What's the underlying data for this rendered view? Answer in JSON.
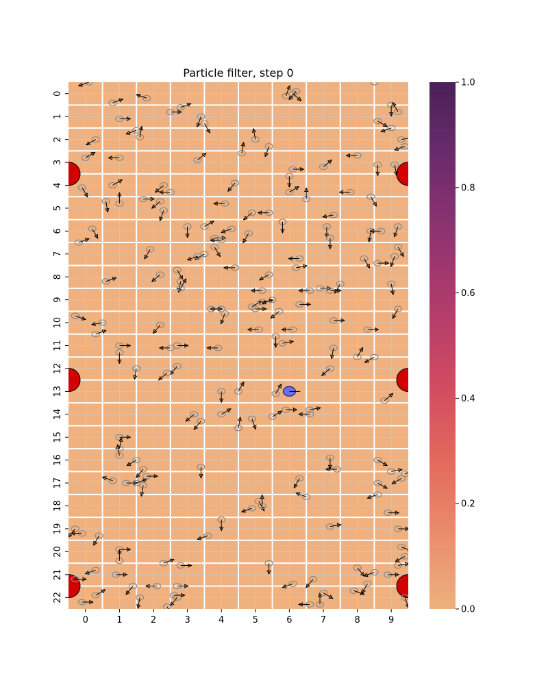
{
  "chart_data": {
    "type": "heatmap",
    "title": "Particle filter, step 0",
    "xlabel": "",
    "ylabel": "",
    "x_ticks": [
      "0",
      "1",
      "2",
      "3",
      "4",
      "5",
      "6",
      "7",
      "8",
      "9"
    ],
    "y_ticks": [
      "0",
      "1",
      "2",
      "3",
      "4",
      "5",
      "6",
      "7",
      "8",
      "9",
      "10",
      "11",
      "12",
      "13",
      "14",
      "15",
      "16",
      "17",
      "18",
      "19",
      "20",
      "21",
      "22"
    ],
    "grid_size": {
      "cols": 10,
      "rows": 23
    },
    "cell_value": 0.0,
    "colorbar": {
      "ticks": [
        "0.0",
        "0.2",
        "0.4",
        "0.6",
        "0.8",
        "1.0"
      ],
      "range": [
        0.0,
        1.0
      ],
      "colormap": "flare",
      "colors": [
        "#eeb17f",
        "#e98d6b",
        "#e3685c",
        "#d14a61",
        "#b13c6b",
        "#8f3371",
        "#6c2b6d",
        "#4a2158"
      ]
    },
    "walls": {
      "vertical_after_cols": [
        0,
        1,
        2,
        3,
        4,
        5,
        6,
        7,
        8
      ],
      "horizontal_after_rows": [
        0,
        1,
        2,
        3,
        4,
        5,
        6,
        7,
        8,
        9,
        10,
        11,
        12,
        13,
        14,
        15,
        16,
        17,
        18,
        19,
        20,
        21
      ]
    },
    "landmarks": [
      {
        "x": -0.5,
        "y": 3.5
      },
      {
        "x": 9.5,
        "y": 3.5
      },
      {
        "x": -0.5,
        "y": 12.5
      },
      {
        "x": 9.5,
        "y": 12.5
      },
      {
        "x": -0.5,
        "y": 21.5
      },
      {
        "x": 9.5,
        "y": 21.5
      }
    ],
    "robot": {
      "x": 6.0,
      "y": 13.0,
      "heading": 0
    },
    "particles": [
      [
        0.1,
        -0.5,
        200
      ],
      [
        0.8,
        0.4,
        20
      ],
      [
        1.8,
        0.2,
        160
      ],
      [
        2.8,
        0.6,
        20
      ],
      [
        1.0,
        1.1,
        0
      ],
      [
        2.5,
        0.8,
        0
      ],
      [
        3.4,
        1.0,
        250
      ],
      [
        6.1,
        0.0,
        320
      ],
      [
        5.9,
        0.1,
        70
      ],
      [
        6.2,
        -0.1,
        230
      ],
      [
        8.5,
        -0.5,
        90
      ],
      [
        9.0,
        0.5,
        270
      ],
      [
        9.2,
        0.8,
        120
      ],
      [
        1.5,
        1.6,
        200
      ],
      [
        0.3,
        2.0,
        210
      ],
      [
        1.6,
        1.9,
        80
      ],
      [
        3.5,
        1.3,
        300
      ],
      [
        5.0,
        2.0,
        100
      ],
      [
        5.4,
        2.3,
        250
      ],
      [
        8.6,
        1.2,
        330
      ],
      [
        9.0,
        1.5,
        200
      ],
      [
        9.3,
        2.0,
        10
      ],
      [
        9.4,
        2.3,
        200
      ],
      [
        9.1,
        3.1,
        280
      ],
      [
        0.0,
        2.8,
        30
      ],
      [
        1.0,
        2.8,
        180
      ],
      [
        3.3,
        2.9,
        40
      ],
      [
        4.6,
        2.6,
        80
      ],
      [
        6.0,
        3.6,
        270
      ],
      [
        6.1,
        3.3,
        0
      ],
      [
        7.0,
        3.2,
        40
      ],
      [
        8.0,
        2.7,
        180
      ],
      [
        8.6,
        3.1,
        270
      ],
      [
        -0.1,
        4.1,
        300
      ],
      [
        0.8,
        4.0,
        30
      ],
      [
        1.7,
        4.6,
        0
      ],
      [
        2.5,
        4.3,
        180
      ],
      [
        2.3,
        4.0,
        220
      ],
      [
        4.4,
        3.9,
        230
      ],
      [
        6.0,
        4.3,
        30
      ],
      [
        6.5,
        4.6,
        90
      ],
      [
        7.8,
        4.3,
        180
      ],
      [
        8.4,
        4.5,
        300
      ],
      [
        0.6,
        4.7,
        280
      ],
      [
        1.0,
        4.8,
        90
      ],
      [
        2.2,
        4.7,
        220
      ],
      [
        2.3,
        5.1,
        250
      ],
      [
        3.0,
        5.8,
        270
      ],
      [
        3.5,
        5.8,
        30
      ],
      [
        4.1,
        4.8,
        180
      ],
      [
        4.9,
        5.2,
        220
      ],
      [
        5.4,
        5.2,
        180
      ],
      [
        5.8,
        5.6,
        270
      ],
      [
        7.3,
        5.3,
        190
      ],
      [
        7.1,
        5.8,
        270
      ],
      [
        8.4,
        6.0,
        260
      ],
      [
        8.7,
        6.0,
        180
      ],
      [
        9.2,
        5.8,
        250
      ],
      [
        0.2,
        5.9,
        300
      ],
      [
        4.3,
        5.9,
        200
      ],
      [
        4.8,
        6.1,
        240
      ],
      [
        3.8,
        6.3,
        0
      ],
      [
        4.0,
        6.4,
        180
      ],
      [
        3.8,
        6.7,
        300
      ],
      [
        3.5,
        7.0,
        210
      ],
      [
        3.3,
        7.1,
        200
      ],
      [
        7.2,
        6.3,
        270
      ],
      [
        -0.2,
        6.5,
        20
      ],
      [
        1.9,
        6.8,
        240
      ],
      [
        9.2,
        6.7,
        300
      ],
      [
        9.1,
        7.1,
        250
      ],
      [
        8.2,
        7.2,
        300
      ],
      [
        8.6,
        7.4,
        0
      ],
      [
        6.3,
        7.2,
        180
      ],
      [
        6.2,
        7.6,
        10
      ],
      [
        4.4,
        7.6,
        180
      ],
      [
        2.7,
        7.7,
        300
      ],
      [
        2.2,
        7.9,
        220
      ],
      [
        2.8,
        8.2,
        260
      ],
      [
        2.8,
        8.5,
        60
      ],
      [
        0.6,
        8.2,
        20
      ],
      [
        5.4,
        7.9,
        210
      ],
      [
        5.2,
        8.6,
        180
      ],
      [
        6.6,
        8.6,
        180
      ],
      [
        6.9,
        8.5,
        0
      ],
      [
        7.2,
        8.6,
        0
      ],
      [
        7.5,
        8.3,
        240
      ],
      [
        9.0,
        8.3,
        280
      ],
      [
        9.2,
        9.4,
        240
      ],
      [
        4.0,
        9.4,
        180
      ],
      [
        3.7,
        9.4,
        0
      ],
      [
        4.1,
        9.6,
        250
      ],
      [
        4.9,
        9.3,
        30
      ],
      [
        5.2,
        9.1,
        10
      ],
      [
        5.5,
        9.0,
        200
      ],
      [
        5.7,
        9.5,
        220
      ],
      [
        6.3,
        9.2,
        0
      ],
      [
        7.3,
        9.9,
        0
      ],
      [
        5.0,
        9.4,
        0
      ],
      [
        -0.3,
        9.7,
        340
      ],
      [
        0.5,
        10.0,
        190
      ],
      [
        2.2,
        10.1,
        230
      ],
      [
        0.3,
        10.5,
        20
      ],
      [
        5.1,
        10.3,
        180
      ],
      [
        6.1,
        10.3,
        180
      ],
      [
        5.6,
        10.6,
        270
      ],
      [
        8.3,
        10.3,
        0
      ],
      [
        1.0,
        11.0,
        0
      ],
      [
        1.0,
        11.3,
        270
      ],
      [
        2.5,
        11.1,
        180
      ],
      [
        2.7,
        11.0,
        0
      ],
      [
        3.9,
        11.1,
        180
      ],
      [
        5.8,
        10.9,
        10
      ],
      [
        7.3,
        11.1,
        260
      ],
      [
        8.5,
        11.5,
        210
      ],
      [
        8.0,
        11.5,
        60
      ],
      [
        7.2,
        12.0,
        220
      ],
      [
        1.5,
        12.0,
        260
      ],
      [
        2.7,
        11.9,
        230
      ],
      [
        2.4,
        12.2,
        220
      ],
      [
        4.0,
        13.0,
        270
      ],
      [
        4.5,
        13.0,
        60
      ],
      [
        5.6,
        13.1,
        60
      ],
      [
        5.9,
        13.8,
        0
      ],
      [
        5.5,
        14.1,
        30
      ],
      [
        6.6,
        13.8,
        10
      ],
      [
        6.6,
        14.0,
        180
      ],
      [
        3.2,
        14.0,
        220
      ],
      [
        3.4,
        14.3,
        230
      ],
      [
        4.0,
        14.0,
        30
      ],
      [
        4.5,
        14.6,
        80
      ],
      [
        4.9,
        14.2,
        290
      ],
      [
        8.8,
        13.4,
        40
      ],
      [
        1.0,
        15.0,
        0
      ],
      [
        1.0,
        15.5,
        80
      ],
      [
        1.0,
        15.8,
        100
      ],
      [
        1.5,
        16.0,
        210
      ],
      [
        1.7,
        16.4,
        230
      ],
      [
        3.4,
        16.3,
        270
      ],
      [
        7.2,
        15.9,
        270
      ],
      [
        7.4,
        16.4,
        180
      ],
      [
        8.6,
        16.0,
        330
      ],
      [
        9.0,
        16.5,
        10
      ],
      [
        9.4,
        16.6,
        20
      ],
      [
        9.3,
        16.8,
        210
      ],
      [
        0.8,
        16.9,
        160
      ],
      [
        1.2,
        17.0,
        0
      ],
      [
        1.5,
        17.0,
        20
      ],
      [
        1.7,
        17.1,
        260
      ],
      [
        1.8,
        16.7,
        0
      ],
      [
        6.3,
        16.8,
        240
      ],
      [
        6.5,
        17.6,
        160
      ],
      [
        8.6,
        17.0,
        330
      ],
      [
        8.6,
        17.5,
        200
      ],
      [
        5.1,
        17.8,
        300
      ],
      [
        4.9,
        18.1,
        200
      ],
      [
        5.2,
        18.0,
        90
      ],
      [
        4.0,
        18.6,
        270
      ],
      [
        3.6,
        19.3,
        200
      ],
      [
        7.2,
        18.9,
        10
      ],
      [
        8.9,
        18.3,
        0
      ],
      [
        -0.3,
        19.0,
        230
      ],
      [
        -0.1,
        19.2,
        180
      ],
      [
        0.4,
        19.3,
        240
      ],
      [
        9.2,
        19.0,
        0
      ],
      [
        9.3,
        19.8,
        340
      ],
      [
        9.4,
        20.2,
        210
      ],
      [
        1.0,
        19.9,
        0
      ],
      [
        1.0,
        20.4,
        90
      ],
      [
        2.3,
        20.5,
        20
      ],
      [
        2.8,
        20.6,
        0
      ],
      [
        5.4,
        20.5,
        270
      ],
      [
        8.0,
        20.7,
        310
      ],
      [
        8.5,
        20.9,
        200
      ],
      [
        8.9,
        21.0,
        0
      ],
      [
        9.2,
        20.6,
        10
      ],
      [
        0.3,
        20.8,
        200
      ],
      [
        0.9,
        21.0,
        0
      ],
      [
        -0.3,
        21.2,
        0
      ],
      [
        1.4,
        21.5,
        230
      ],
      [
        2.1,
        21.5,
        180
      ],
      [
        2.7,
        21.5,
        0
      ],
      [
        6.1,
        21.4,
        200
      ],
      [
        6.7,
        21.2,
        230
      ],
      [
        7.0,
        21.8,
        330
      ],
      [
        7.9,
        21.7,
        340
      ],
      [
        8.3,
        21.4,
        240
      ],
      [
        1.6,
        22.0,
        260
      ],
      [
        2.7,
        22.0,
        230
      ],
      [
        2.6,
        21.9,
        0
      ],
      [
        0.3,
        21.9,
        30
      ],
      [
        -0.1,
        22.2,
        0
      ],
      [
        2.4,
        22.4,
        300
      ],
      [
        6.6,
        22.3,
        180
      ],
      [
        6.9,
        22.3,
        90
      ],
      [
        9.4,
        22.0,
        290
      ]
    ]
  }
}
